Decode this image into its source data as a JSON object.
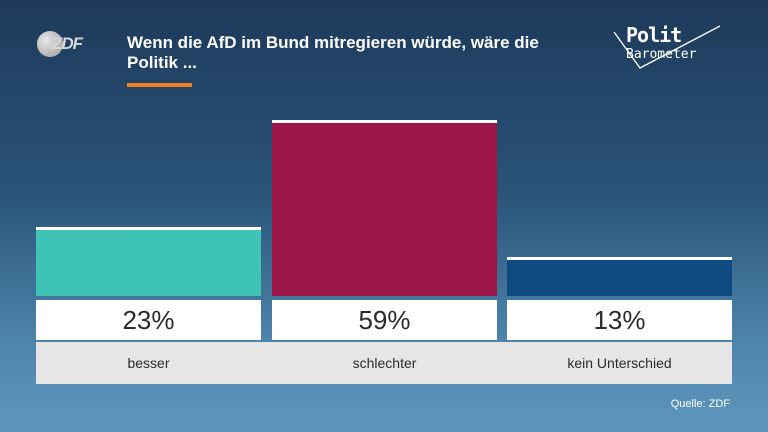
{
  "header": {
    "logo_text": "ZDF",
    "title": "Wenn die AfD im Bund mitregieren würde, wäre die Politik ...",
    "brand_line1": "Polit",
    "brand_line2": "Barometer"
  },
  "chart_data": {
    "type": "bar",
    "categories": [
      "besser",
      "schlechter",
      "kein Unterschied"
    ],
    "values": [
      23,
      59,
      13
    ],
    "value_labels": [
      "23%",
      "59%",
      "13%"
    ],
    "colors": [
      "#3ec3b4",
      "#9c1747",
      "#0e4a80"
    ],
    "title": "Wenn die AfD im Bund mitregieren würde, wäre die Politik ...",
    "ylim": [
      0,
      59
    ],
    "grid": false
  },
  "footer": {
    "source": "Quelle: ZDF"
  }
}
